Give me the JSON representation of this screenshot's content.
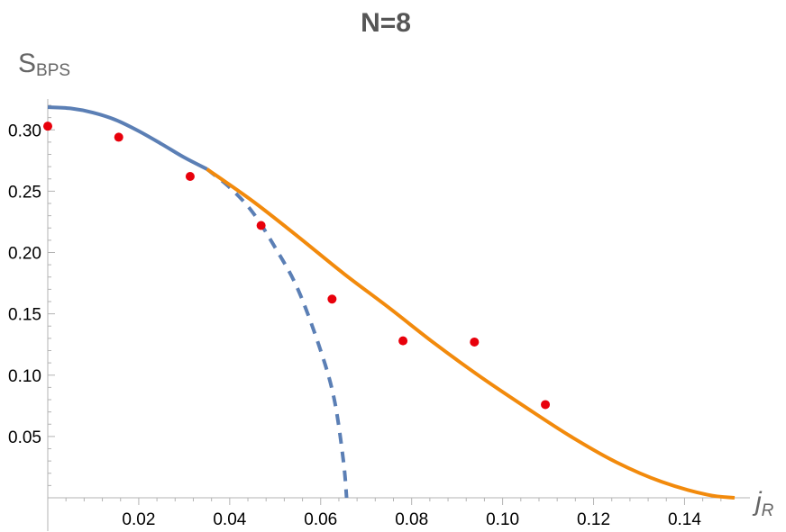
{
  "chart_data": {
    "type": "line",
    "title": "N=8",
    "ylabel": {
      "main": "S",
      "sub": "BPS"
    },
    "xlabel": {
      "main": "j",
      "sub": "R"
    },
    "xlim": [
      0,
      0.152
    ],
    "ylim": [
      0,
      0.32
    ],
    "x_ticks": [
      0.02,
      0.04,
      0.06,
      0.08,
      0.1,
      0.12,
      0.14
    ],
    "x_tick_labels": [
      "0.02",
      "0.04",
      "0.06",
      "0.08",
      "0.10",
      "0.12",
      "0.14"
    ],
    "y_ticks": [
      0.05,
      0.1,
      0.15,
      0.2,
      0.25,
      0.3
    ],
    "y_tick_labels": [
      "0.05",
      "0.10",
      "0.15",
      "0.20",
      "0.25",
      "0.30"
    ],
    "grid": false,
    "series": [
      {
        "style": "solid",
        "color": "#5b7fb5",
        "x": [
          0,
          0.005,
          0.01,
          0.015,
          0.02,
          0.025,
          0.03,
          0.035
        ],
        "y": [
          0.3185,
          0.3175,
          0.314,
          0.308,
          0.299,
          0.2885,
          0.2775,
          0.268
        ]
      },
      {
        "style": "dashed",
        "color": "#5b7fb5",
        "x": [
          0.035,
          0.04,
          0.045,
          0.05,
          0.055,
          0.06,
          0.063,
          0.065,
          0.0657
        ],
        "y": [
          0.268,
          0.253,
          0.233,
          0.204,
          0.17,
          0.12,
          0.08,
          0.03,
          0.0
        ]
      },
      {
        "style": "solid",
        "color": "#f28a0c",
        "x": [
          0.035,
          0.045,
          0.055,
          0.065,
          0.075,
          0.085,
          0.095,
          0.105,
          0.115,
          0.125,
          0.135,
          0.145,
          0.151
        ],
        "y": [
          0.268,
          0.242,
          0.213,
          0.183,
          0.155,
          0.126,
          0.099,
          0.074,
          0.05,
          0.029,
          0.013,
          0.0025,
          0.0
        ]
      },
      {
        "style": "points",
        "color": "#e8000b",
        "x": [
          0.0,
          0.0156,
          0.0313,
          0.0469,
          0.0625,
          0.0781,
          0.0938,
          0.1094
        ],
        "y": [
          0.303,
          0.294,
          0.262,
          0.222,
          0.162,
          0.128,
          0.127,
          0.076
        ]
      }
    ]
  }
}
